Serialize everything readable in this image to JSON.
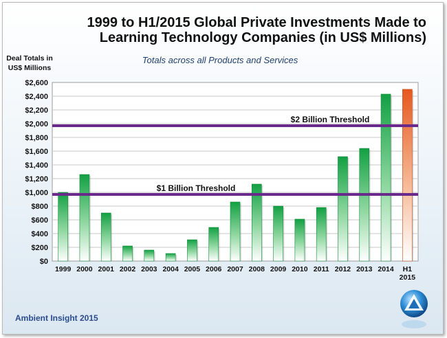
{
  "chart_data": {
    "type": "bar",
    "title": "1999 to H1/2015 Global Private Investments Made to Learning Technology Companies (in US$ Millions)",
    "subtitle": "Totals across all Products and Services",
    "ylabel": "Deal Totals in US$ Millions",
    "xlabel": "",
    "ylim": [
      0,
      2600
    ],
    "yticks": [
      "$0",
      "$200",
      "$400",
      "$600",
      "$800",
      "$1,000",
      "$1,200",
      "$1,400",
      "$1,600",
      "$1,800",
      "$2,000",
      "$2,200",
      "$2,400",
      "$2,600"
    ],
    "categories": [
      "1999",
      "2000",
      "2001",
      "2002",
      "2003",
      "2004",
      "2005",
      "2006",
      "2007",
      "2008",
      "2009",
      "2010",
      "2011",
      "2012",
      "2013",
      "2014",
      "H1 2015"
    ],
    "values": [
      1000,
      1260,
      700,
      220,
      160,
      110,
      310,
      490,
      860,
      1120,
      800,
      610,
      780,
      1520,
      1640,
      2430,
      2500
    ],
    "reference_lines": [
      {
        "label": "$1 Billion  Threshold",
        "value": 970
      },
      {
        "label": "$2 Billion  Threshold",
        "value": 1970
      }
    ],
    "grid": true,
    "colors": {
      "bar": "#1aa34a",
      "bar_highlight": "#e8642c",
      "threshold": "#6a2a8c",
      "grid": "#c9c9c9"
    }
  },
  "footer": "Ambient Insight 2015"
}
